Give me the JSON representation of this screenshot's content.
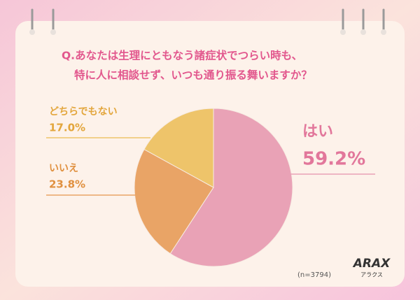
{
  "chart_data": {
    "type": "pie",
    "title": [
      "Q.あなたは生理にともなう諸症状でつらい時も、",
      "特に人に相談せず、いつも通り振る舞いますか？"
    ],
    "categories": [
      "はい",
      "いいえ",
      "どちらでもない"
    ],
    "values": [
      59.2,
      23.8,
      17.0
    ],
    "value_labels": [
      "59.2%",
      "23.8%",
      "17.0%"
    ],
    "colors": [
      "#e9a2b6",
      "#e9a466",
      "#eec46a"
    ],
    "note": "(n=3794)",
    "brand": "ARAX",
    "brand_sub": "アラクス"
  }
}
